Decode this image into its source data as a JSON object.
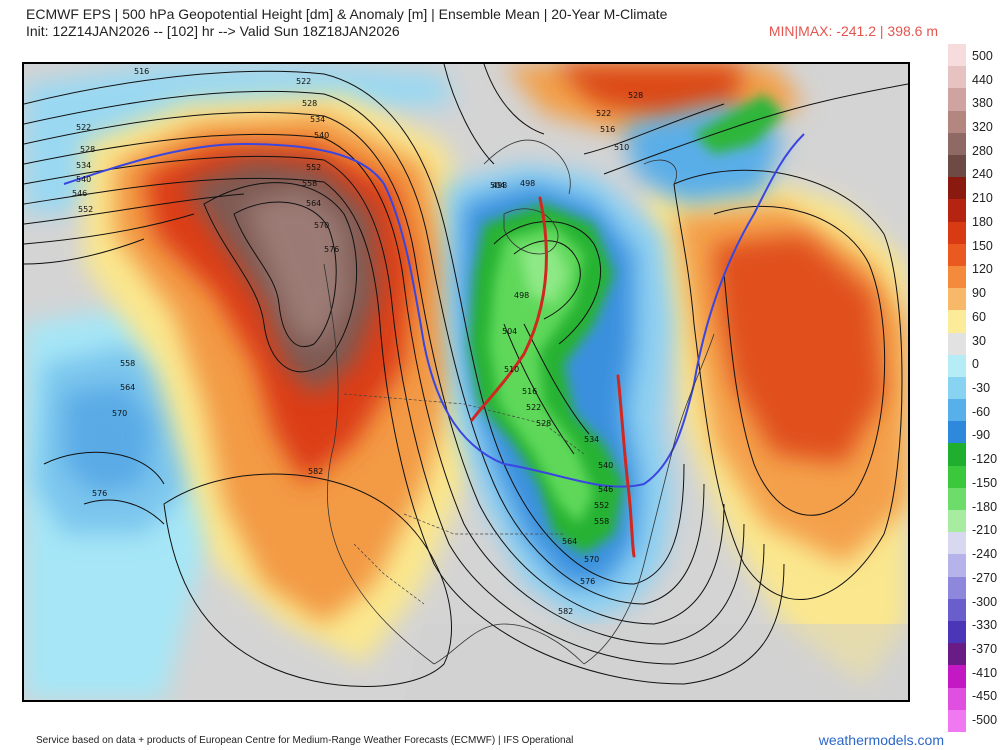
{
  "header": {
    "title_line1": "ECMWF EPS | 500 hPa Geopotential Height [dm] & Anomaly [m] | Ensemble Mean | 20-Year M-Climate",
    "title_line2": "Init: 12Z14JAN2026 -- [102] hr --> Valid Sun 18Z18JAN2026",
    "minmax": "MIN|MAX: -241.2 | 398.6 m"
  },
  "legend": {
    "labels": [
      "500",
      "440",
      "380",
      "320",
      "280",
      "240",
      "210",
      "180",
      "150",
      "120",
      "90",
      "60",
      "30",
      "0",
      "-30",
      "-60",
      "-90",
      "-120",
      "-150",
      "-180",
      "-210",
      "-240",
      "-270",
      "-300",
      "-330",
      "-370",
      "-410",
      "-450",
      "-500"
    ],
    "colors": [
      "#f6dcdc",
      "#e6c2c0",
      "#cfa39f",
      "#b38680",
      "#8f6a64",
      "#6e4a44",
      "#8a1a10",
      "#b52410",
      "#d83a14",
      "#ea5a20",
      "#f38a3c",
      "#f8b86a",
      "#fcec9a",
      "#e2e2e2",
      "#b6ecf6",
      "#88d2f2",
      "#58b0ea",
      "#2e88dc",
      "#1fae2e",
      "#3cc83c",
      "#6edc6a",
      "#a8eca2",
      "#d8d8f0",
      "#b6b2ea",
      "#8e88dc",
      "#6a5ecc",
      "#4a36b6",
      "#6a1c86",
      "#c418c4",
      "#e050e0",
      "#f078f0"
    ]
  },
  "map": {
    "contour_labels": [
      "516",
      "522",
      "528",
      "534",
      "540",
      "546",
      "552",
      "558",
      "564",
      "570",
      "576",
      "582",
      "498",
      "504",
      "510"
    ]
  },
  "footer": {
    "credit": "Service based on data + products of European Centre for Medium-Range Weather Forecasts (ECMWF) | IFS Operational",
    "brand": "weathermodels.com"
  }
}
